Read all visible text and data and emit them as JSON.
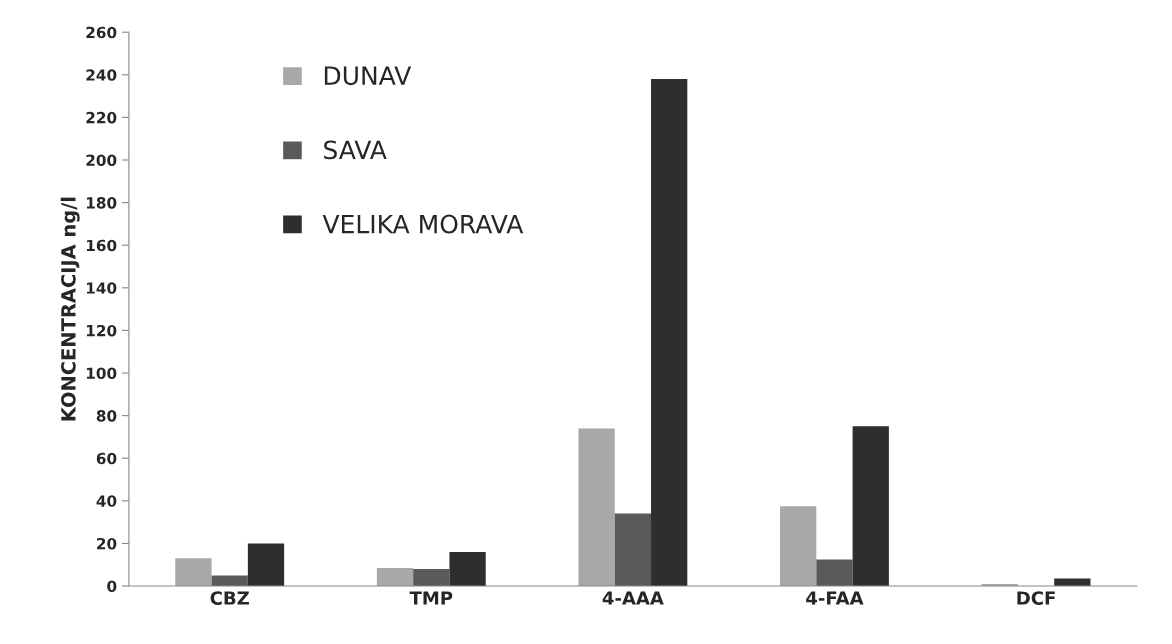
{
  "chart_data": {
    "type": "bar",
    "ylabel": "KONCENTRACIJA ng/l",
    "categories": [
      "CBZ",
      "TMP",
      "4-AAA",
      "4-FAA",
      "DCF"
    ],
    "series": [
      {
        "name": "DUNAV",
        "color": "#a8a8a8",
        "values": [
          13,
          8.5,
          74,
          37.5,
          1
        ]
      },
      {
        "name": "SAVA",
        "color": "#5a5a5a",
        "values": [
          5,
          8,
          34,
          12.5,
          0
        ]
      },
      {
        "name": "VELIKA MORAVA",
        "color": "#2e2e2e",
        "values": [
          20,
          16,
          238,
          75,
          3.5
        ]
      }
    ],
    "ylim": [
      0,
      260
    ],
    "yticks": [
      0,
      20,
      40,
      60,
      80,
      100,
      120,
      140,
      160,
      180,
      200,
      220,
      240,
      260
    ],
    "grid": false,
    "legend": "top left"
  }
}
